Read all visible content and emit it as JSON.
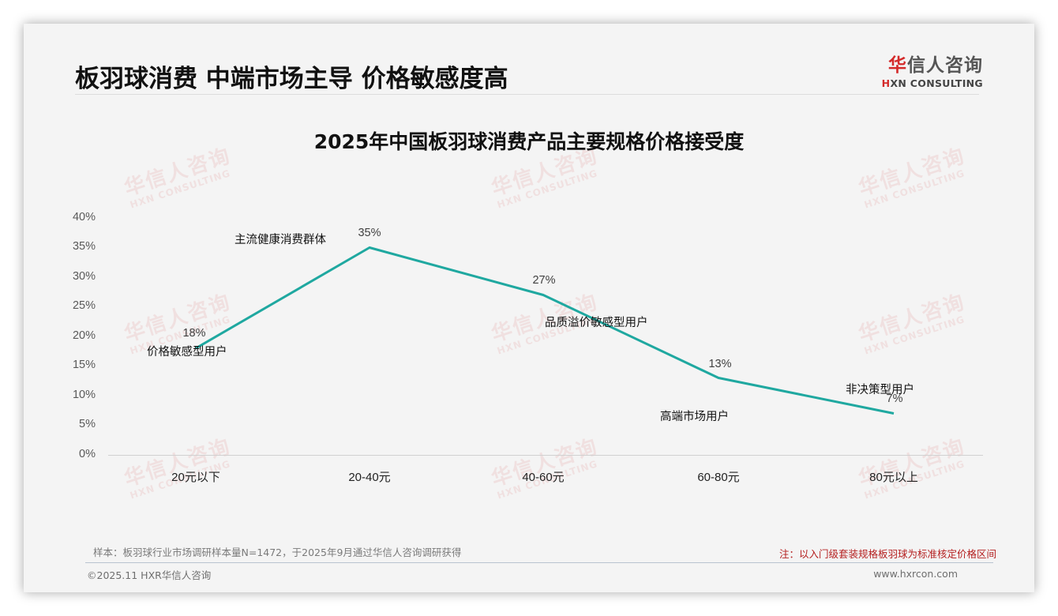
{
  "header": {
    "page_title": "板羽球消费 中端市场主导 价格敏感度高",
    "logo": {
      "cn_highlight": "华",
      "cn_rest": "信人咨询",
      "en_highlight": "H",
      "en_rest": "XN CONSULTING"
    }
  },
  "watermark": {
    "cn": "华信人咨询",
    "en": "HXN CONSULTING"
  },
  "chart_data": {
    "type": "line",
    "title": "2025年中国板羽球消费产品主要规格价格接受度",
    "categories": [
      "20元以下",
      "20-40元",
      "40-60元",
      "60-80元",
      "80元以上"
    ],
    "values": [
      18,
      35,
      27,
      13,
      7
    ],
    "value_labels": [
      "18%",
      "35%",
      "27%",
      "13%",
      "7%"
    ],
    "segment_labels": [
      "价格敏感型用户",
      "主流健康消费群体",
      "品质溢价敏感型用户",
      "高端市场用户",
      "非决策型用户"
    ],
    "yticks": [
      "0%",
      "5%",
      "10%",
      "15%",
      "20%",
      "25%",
      "30%",
      "35%",
      "40%"
    ],
    "ylim": [
      0,
      40
    ],
    "xlabel": "",
    "ylabel": "",
    "grid": false,
    "legend": "none",
    "line_color": "#1fa8a0"
  },
  "footer": {
    "source_note": "样本：板羽球行业市场调研样本量N=1472，于2025年9月通过华信人咨询调研获得",
    "red_note": "注：以入门级套装规格板羽球为标准核定价格区间",
    "copyright": "©2025.11 HXR华信人咨询",
    "website": "www.hxrcon.com"
  }
}
